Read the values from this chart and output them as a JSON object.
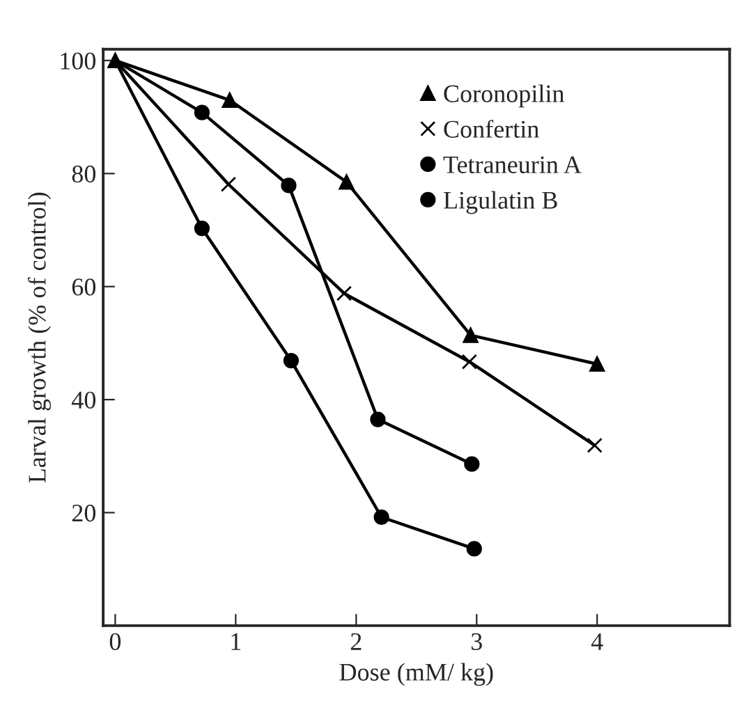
{
  "chart_data": {
    "type": "line",
    "xlabel": "Dose (mM/ kg)",
    "ylabel": "Larval growth (% of control)",
    "xlim": [
      -0.1,
      5.1
    ],
    "ylim": [
      0,
      102
    ],
    "xticks": [
      0,
      1,
      2,
      3,
      4
    ],
    "yticks": [
      20,
      40,
      60,
      80,
      100
    ],
    "grid": false,
    "legend": "top right",
    "line_style": "solid",
    "series": [
      {
        "name": "Coronopilin",
        "color": "#000000",
        "marker": "triangle",
        "x": [
          0,
          0.95,
          1.92,
          2.95,
          4.0
        ],
        "values": [
          100,
          93,
          78.5,
          51.4,
          46.3
        ]
      },
      {
        "name": "Confertin",
        "color": "#000000",
        "marker": "cross",
        "x": [
          0,
          0.94,
          1.9,
          2.94,
          3.98
        ],
        "values": [
          100,
          78.1,
          58.8,
          46.7,
          31.9
        ]
      },
      {
        "name": "Tetraneurin A",
        "color": "#000000",
        "marker": "circle",
        "x": [
          0,
          0.72,
          1.46,
          2.21,
          2.98
        ],
        "values": [
          100,
          70.3,
          46.9,
          19.2,
          13.6
        ]
      },
      {
        "name": "Ligulatin B",
        "color": "#000000",
        "marker": "circle",
        "x": [
          0,
          0.72,
          1.44,
          2.18,
          2.96
        ],
        "values": [
          100,
          90.8,
          77.9,
          36.5,
          28.6
        ]
      }
    ]
  }
}
